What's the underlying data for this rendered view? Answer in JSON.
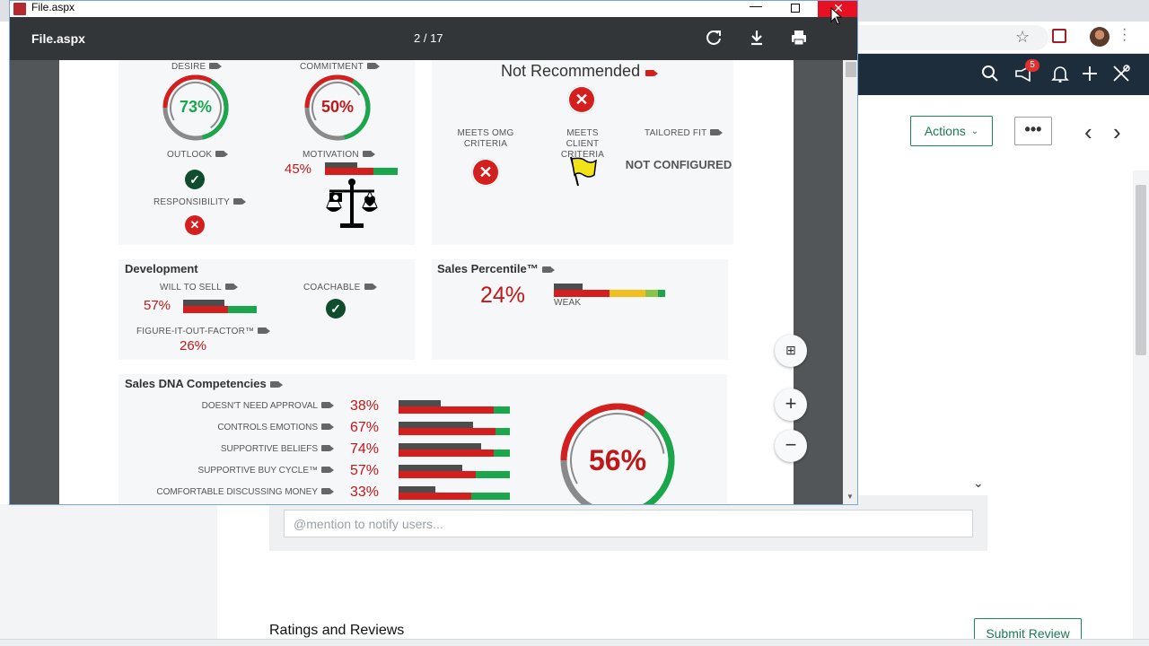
{
  "browser": {
    "colors": {
      "appbar": "#1e2d3c",
      "accent": "#1a8a5a",
      "close_red": "#e81123"
    },
    "notification_count": "5",
    "icons": [
      "star-icon",
      "extension-icon",
      "profile-avatar",
      "search-icon",
      "megaphone-icon",
      "bell-icon",
      "plus-icon",
      "tools-icon"
    ]
  },
  "app": {
    "actions_label": "Actions",
    "more_label": "•••",
    "mention_placeholder": "@mention to notify users...",
    "ratings_title": "Ratings and Reviews",
    "submit_review_label": "Submit Review"
  },
  "pdf_window": {
    "window_title": "File.aspx",
    "filename": "File.aspx",
    "page_indicator": "2 / 17",
    "toolbar_icons": [
      "rotate-icon",
      "download-icon",
      "print-icon"
    ],
    "zoom_icons": [
      "fit-page-icon",
      "zoom-in-icon",
      "zoom-out-icon"
    ]
  },
  "report": {
    "desire": {
      "label": "DESIRE",
      "value": "73%",
      "fraction": 0.73
    },
    "commitment": {
      "label": "COMMITMENT",
      "value": "50%",
      "fraction": 0.5
    },
    "outlook": {
      "label": "OUTLOOK",
      "status": "check"
    },
    "motivation": {
      "label": "MOTIVATION",
      "value": "45%"
    },
    "responsibility": {
      "label": "RESPONSIBILITY",
      "status": "x"
    },
    "recommendation": {
      "title": "Not Recommended",
      "meets_omg_label": "MEETS OMG CRITERIA",
      "meets_client_label": "MEETS CLIENT CRITERIA",
      "tailored_fit_label": "TAILORED FIT",
      "tailored_fit_value": "NOT CONFIGURED"
    },
    "development": {
      "title": "Development",
      "will_to_sell_label": "WILL TO SELL",
      "will_to_sell_value": "57%",
      "coachable_label": "COACHABLE",
      "figure_it_out_label": "FIGURE-IT-OUT-FACTOR™",
      "figure_it_out_value": "26%"
    },
    "sales_percentile": {
      "title": "Sales Percentile™",
      "value": "24%",
      "rating": "WEAK"
    },
    "competencies": {
      "title": "Sales DNA Competencies",
      "overall": "56%",
      "overall_fraction": 0.56,
      "items": [
        {
          "label": "DOESN'T NEED APPROVAL",
          "value": "38%",
          "fraction": 0.38
        },
        {
          "label": "CONTROLS EMOTIONS",
          "value": "67%",
          "fraction": 0.67
        },
        {
          "label": "SUPPORTIVE BELIEFS",
          "value": "74%",
          "fraction": 0.74
        },
        {
          "label": "SUPPORTIVE BUY CYCLE™",
          "value": "57%",
          "fraction": 0.57
        },
        {
          "label": "COMFORTABLE DISCUSSING MONEY",
          "value": "33%",
          "fraction": 0.33
        }
      ]
    },
    "colors": {
      "red": "#d41f1f",
      "green": "#1aa64a",
      "gray": "#4d4d4d",
      "yellow": "#f2c01e",
      "value_red": "#c01818"
    }
  }
}
